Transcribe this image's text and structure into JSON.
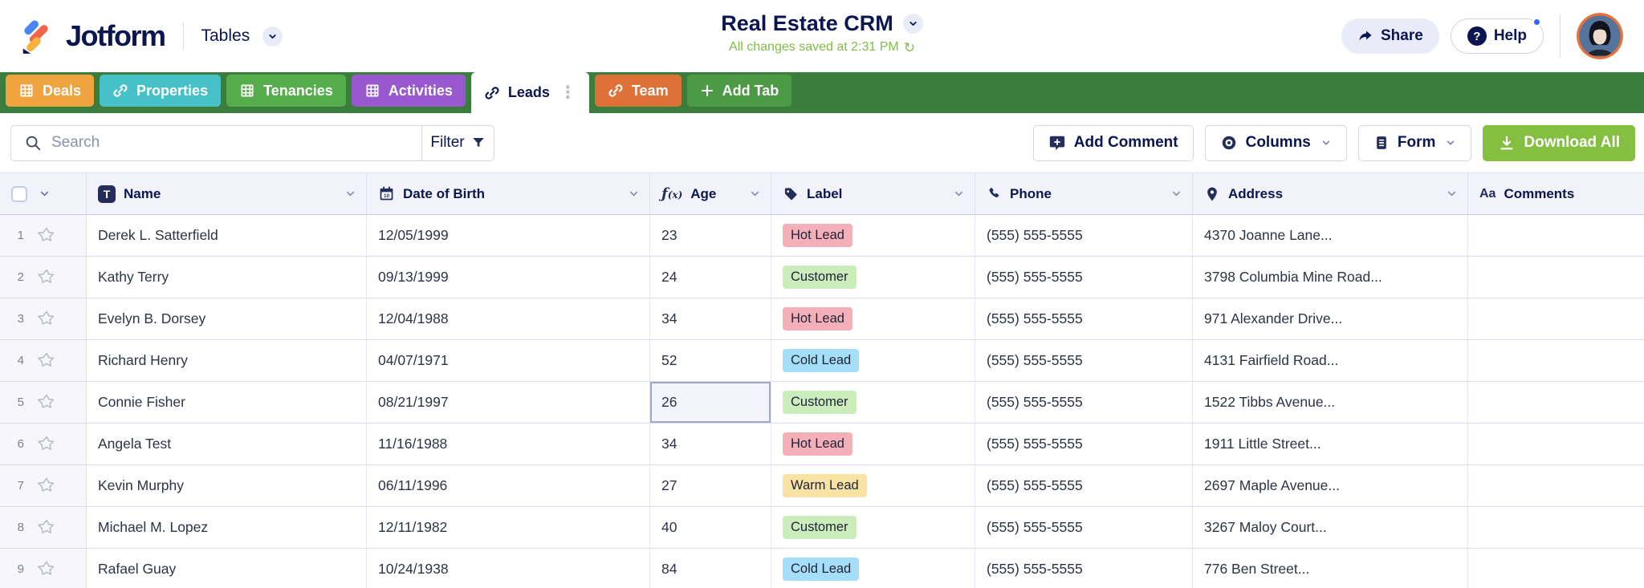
{
  "header": {
    "brand": "Jotform",
    "product": "Tables",
    "title": "Real Estate CRM",
    "status": "All changes saved at 2:31 PM",
    "share_label": "Share",
    "help_label": "Help"
  },
  "tabs": [
    {
      "label": "Deals",
      "icon": "grid-icon",
      "color": "#EFA440",
      "active": false
    },
    {
      "label": "Properties",
      "icon": "link-icon",
      "color": "#48C0C8",
      "active": false
    },
    {
      "label": "Tenancies",
      "icon": "grid-icon",
      "color": "#55AD4B",
      "active": false
    },
    {
      "label": "Activities",
      "icon": "grid-icon",
      "color": "#9859CF",
      "active": false
    },
    {
      "label": "Leads",
      "icon": "link-icon",
      "color": "#FFFFFF",
      "active": true
    },
    {
      "label": "Team",
      "icon": "link-icon",
      "color": "#DD7138",
      "active": false
    },
    {
      "label": "Add Tab",
      "icon": "plus-icon",
      "color": "#4C9A46",
      "active": false
    }
  ],
  "toolbar": {
    "search_placeholder": "Search",
    "filter_label": "Filter",
    "add_comment_label": "Add Comment",
    "columns_label": "Columns",
    "form_label": "Form",
    "download_label": "Download All"
  },
  "table": {
    "columns": [
      {
        "key": "name",
        "label": "Name",
        "icon": "text-field-icon"
      },
      {
        "key": "dob",
        "label": "Date of Birth",
        "icon": "calendar-icon"
      },
      {
        "key": "age",
        "label": "Age",
        "icon": "formula-icon"
      },
      {
        "key": "label",
        "label": "Label",
        "icon": "tag-icon"
      },
      {
        "key": "phone",
        "label": "Phone",
        "icon": "phone-icon"
      },
      {
        "key": "address",
        "label": "Address",
        "icon": "location-icon"
      },
      {
        "key": "comments",
        "label": "Comments",
        "icon": "aa-icon"
      }
    ],
    "label_colors": {
      "Hot Lead": "#F5AFB8",
      "Customer": "#CBEDBB",
      "Cold Lead": "#A5DEF8",
      "Warm Lead": "#F8E2A4"
    },
    "selected_cell": {
      "row": 5,
      "column": "age"
    },
    "rows": [
      {
        "num": 1,
        "name": "Derek L. Satterfield",
        "dob": "12/05/1999",
        "age": "23",
        "label": "Hot Lead",
        "phone": "(555) 555-5555",
        "address": "4370 Joanne Lane...",
        "comments": ""
      },
      {
        "num": 2,
        "name": "Kathy Terry",
        "dob": "09/13/1999",
        "age": "24",
        "label": "Customer",
        "phone": "(555) 555-5555",
        "address": "3798 Columbia Mine Road...",
        "comments": ""
      },
      {
        "num": 3,
        "name": "Evelyn B. Dorsey",
        "dob": "12/04/1988",
        "age": "34",
        "label": "Hot Lead",
        "phone": "(555) 555-5555",
        "address": "971 Alexander Drive...",
        "comments": ""
      },
      {
        "num": 4,
        "name": "Richard Henry",
        "dob": "04/07/1971",
        "age": "52",
        "label": "Cold Lead",
        "phone": "(555) 555-5555",
        "address": "4131 Fairfield Road...",
        "comments": ""
      },
      {
        "num": 5,
        "name": "Connie Fisher",
        "dob": "08/21/1997",
        "age": "26",
        "label": "Customer",
        "phone": "(555) 555-5555",
        "address": "1522 Tibbs Avenue...",
        "comments": ""
      },
      {
        "num": 6,
        "name": "Angela Test",
        "dob": "11/16/1988",
        "age": "34",
        "label": "Hot Lead",
        "phone": "(555) 555-5555",
        "address": "1911 Little Street...",
        "comments": ""
      },
      {
        "num": 7,
        "name": "Kevin Murphy",
        "dob": "06/11/1996",
        "age": "27",
        "label": "Warm Lead",
        "phone": "(555) 555-5555",
        "address": "2697 Maple Avenue...",
        "comments": ""
      },
      {
        "num": 8,
        "name": "Michael M. Lopez",
        "dob": "12/11/1982",
        "age": "40",
        "label": "Customer",
        "phone": "(555) 555-5555",
        "address": "3267 Maloy Court...",
        "comments": ""
      },
      {
        "num": 9,
        "name": "Rafael Guay",
        "dob": "10/24/1938",
        "age": "84",
        "label": "Cold Lead",
        "phone": "(555) 555-5555",
        "address": "776 Ben Street...",
        "comments": ""
      }
    ]
  }
}
